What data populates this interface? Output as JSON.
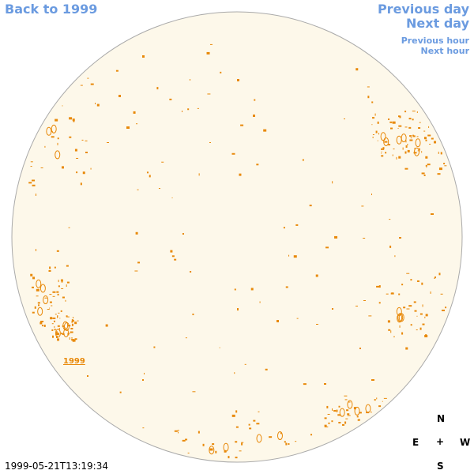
{
  "nav": {
    "back": "Back to 1999",
    "prev_day": "Previous day",
    "next_day": "Next day",
    "prev_hour": "Previous hour",
    "next_hour": "Next hour"
  },
  "map": {
    "year_label": "1999",
    "timestamp": "1999-05-21T13:19:34",
    "disk_fill": "#fdf8ea",
    "disk_stroke": "#aaaaaa",
    "mark_color": "#e8890a"
  },
  "compass": {
    "north": "N",
    "east": "E",
    "center": "+",
    "west": "W",
    "south": "S"
  }
}
